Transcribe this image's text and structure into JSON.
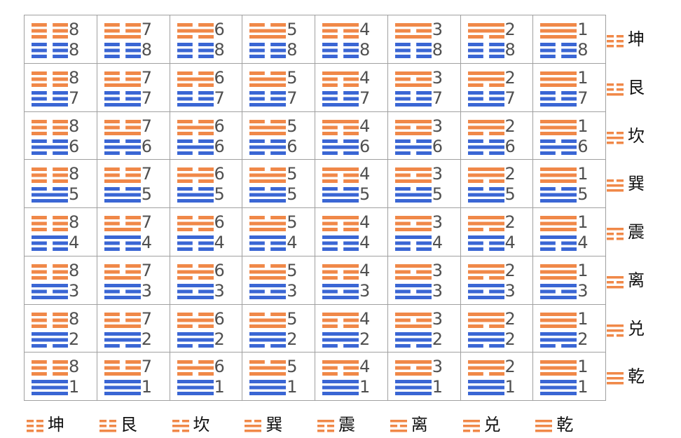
{
  "colors": {
    "upper": "#f08848",
    "lower": "#3a66d4",
    "border": "#a0a0a0"
  },
  "trigrams": [
    {
      "num": "1",
      "name": "乾",
      "lines": [
        1,
        1,
        1
      ]
    },
    {
      "num": "2",
      "name": "兑",
      "lines": [
        1,
        1,
        0
      ]
    },
    {
      "num": "3",
      "name": "离",
      "lines": [
        1,
        0,
        1
      ]
    },
    {
      "num": "4",
      "name": "震",
      "lines": [
        1,
        0,
        0
      ]
    },
    {
      "num": "5",
      "name": "巽",
      "lines": [
        0,
        1,
        1
      ]
    },
    {
      "num": "6",
      "name": "坎",
      "lines": [
        0,
        1,
        0
      ]
    },
    {
      "num": "7",
      "name": "艮",
      "lines": [
        0,
        0,
        1
      ]
    },
    {
      "num": "8",
      "name": "坤",
      "lines": [
        0,
        0,
        0
      ]
    }
  ],
  "column_order": [
    7,
    6,
    5,
    4,
    3,
    2,
    1,
    0
  ],
  "row_order": [
    7,
    6,
    5,
    4,
    3,
    2,
    1,
    0
  ],
  "row_labels": [
    "坤",
    "艮",
    "坎",
    "巽",
    "震",
    "离",
    "兑",
    "乾"
  ],
  "column_labels": [
    "坤",
    "艮",
    "坎",
    "巽",
    "震",
    "离",
    "兑",
    "乾"
  ]
}
